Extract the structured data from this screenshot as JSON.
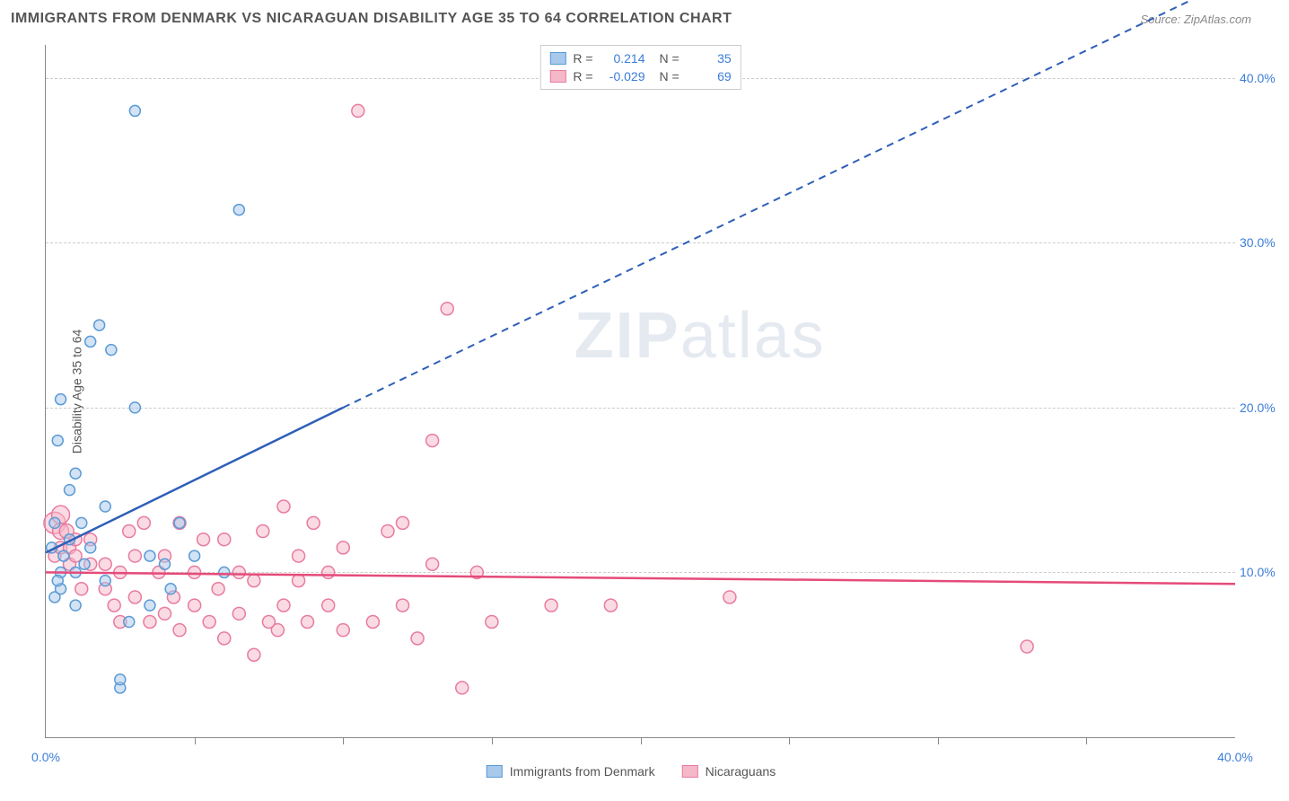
{
  "title": "IMMIGRANTS FROM DENMARK VS NICARAGUAN DISABILITY AGE 35 TO 64 CORRELATION CHART",
  "source": "Source: ZipAtlas.com",
  "ylabel": "Disability Age 35 to 64",
  "watermark_bold": "ZIP",
  "watermark_light": "atlas",
  "chart": {
    "type": "scatter",
    "xlim": [
      0,
      40
    ],
    "ylim": [
      0,
      42
    ],
    "xticks": [
      0,
      40
    ],
    "xtick_labels": [
      "0.0%",
      "40.0%"
    ],
    "xtick_minors": [
      5,
      10,
      15,
      20,
      25,
      30,
      35
    ],
    "yticks": [
      10,
      20,
      30,
      40
    ],
    "ytick_labels": [
      "10.0%",
      "20.0%",
      "30.0%",
      "40.0%"
    ],
    "background_color": "#ffffff",
    "grid_color": "#cccccc",
    "series": [
      {
        "name": "Immigrants from Denmark",
        "fill": "#a8c8ec",
        "stroke": "#5b9bd5",
        "fill_opacity": 0.5,
        "R": "0.214",
        "N": "35",
        "regression": {
          "solid": {
            "x1": 0,
            "y1": 11.2,
            "x2": 10,
            "y2": 20
          },
          "dashed": {
            "x1": 10,
            "y1": 20,
            "x2": 40,
            "y2": 46
          },
          "color": "#2e5fb8",
          "width": 2.5
        },
        "points": [
          {
            "x": 0.2,
            "y": 11.5,
            "r": 6
          },
          {
            "x": 0.3,
            "y": 8.5,
            "r": 6
          },
          {
            "x": 0.4,
            "y": 18,
            "r": 6
          },
          {
            "x": 0.5,
            "y": 20.5,
            "r": 6
          },
          {
            "x": 0.5,
            "y": 9,
            "r": 6
          },
          {
            "x": 0.6,
            "y": 11,
            "r": 6
          },
          {
            "x": 0.8,
            "y": 15,
            "r": 6
          },
          {
            "x": 1,
            "y": 10,
            "r": 6
          },
          {
            "x": 1,
            "y": 16,
            "r": 6
          },
          {
            "x": 1.2,
            "y": 13,
            "r": 6
          },
          {
            "x": 1.5,
            "y": 11.5,
            "r": 6
          },
          {
            "x": 1.5,
            "y": 24,
            "r": 6
          },
          {
            "x": 1.8,
            "y": 25,
            "r": 6
          },
          {
            "x": 2,
            "y": 9.5,
            "r": 6
          },
          {
            "x": 2,
            "y": 14,
            "r": 6
          },
          {
            "x": 2.2,
            "y": 23.5,
            "r": 6
          },
          {
            "x": 2.5,
            "y": 3,
            "r": 6
          },
          {
            "x": 2.5,
            "y": 3.5,
            "r": 6
          },
          {
            "x": 2.8,
            "y": 7,
            "r": 6
          },
          {
            "x": 3,
            "y": 20,
            "r": 6
          },
          {
            "x": 3,
            "y": 38,
            "r": 6
          },
          {
            "x": 3.5,
            "y": 8,
            "r": 6
          },
          {
            "x": 3.5,
            "y": 11,
            "r": 6
          },
          {
            "x": 4,
            "y": 10.5,
            "r": 6
          },
          {
            "x": 4.2,
            "y": 9,
            "r": 6
          },
          {
            "x": 4.5,
            "y": 13,
            "r": 6
          },
          {
            "x": 5,
            "y": 11,
            "r": 6
          },
          {
            "x": 6,
            "y": 10,
            "r": 6
          },
          {
            "x": 6.5,
            "y": 32,
            "r": 6
          },
          {
            "x": 0.3,
            "y": 13,
            "r": 6
          },
          {
            "x": 0.5,
            "y": 10,
            "r": 6
          },
          {
            "x": 1,
            "y": 8,
            "r": 6
          },
          {
            "x": 0.8,
            "y": 12,
            "r": 6
          },
          {
            "x": 1.3,
            "y": 10.5,
            "r": 6
          },
          {
            "x": 0.4,
            "y": 9.5,
            "r": 6
          }
        ]
      },
      {
        "name": "Nicaraguans",
        "fill": "#f5b8c8",
        "stroke": "#e87ba0",
        "fill_opacity": 0.5,
        "R": "-0.029",
        "N": "69",
        "regression": {
          "solid": {
            "x1": 0,
            "y1": 10,
            "x2": 40,
            "y2": 9.3
          },
          "color": "#e54b7a",
          "width": 2.5
        },
        "points": [
          {
            "x": 0.3,
            "y": 11,
            "r": 7
          },
          {
            "x": 0.3,
            "y": 13,
            "r": 12
          },
          {
            "x": 0.5,
            "y": 11.5,
            "r": 7
          },
          {
            "x": 0.5,
            "y": 12.5,
            "r": 9
          },
          {
            "x": 0.8,
            "y": 10.5,
            "r": 7
          },
          {
            "x": 0.8,
            "y": 11.5,
            "r": 7
          },
          {
            "x": 1,
            "y": 11,
            "r": 7
          },
          {
            "x": 1,
            "y": 12,
            "r": 7
          },
          {
            "x": 1.2,
            "y": 9,
            "r": 7
          },
          {
            "x": 1.5,
            "y": 10.5,
            "r": 7
          },
          {
            "x": 1.5,
            "y": 12,
            "r": 7
          },
          {
            "x": 2,
            "y": 9,
            "r": 7
          },
          {
            "x": 2,
            "y": 10.5,
            "r": 7
          },
          {
            "x": 2.3,
            "y": 8,
            "r": 7
          },
          {
            "x": 2.5,
            "y": 7,
            "r": 7
          },
          {
            "x": 2.5,
            "y": 10,
            "r": 7
          },
          {
            "x": 2.8,
            "y": 12.5,
            "r": 7
          },
          {
            "x": 3,
            "y": 8.5,
            "r": 7
          },
          {
            "x": 3,
            "y": 11,
            "r": 7
          },
          {
            "x": 3.3,
            "y": 13,
            "r": 7
          },
          {
            "x": 3.5,
            "y": 7,
            "r": 7
          },
          {
            "x": 3.8,
            "y": 10,
            "r": 7
          },
          {
            "x": 4,
            "y": 7.5,
            "r": 7
          },
          {
            "x": 4,
            "y": 11,
            "r": 7
          },
          {
            "x": 4.3,
            "y": 8.5,
            "r": 7
          },
          {
            "x": 4.5,
            "y": 6.5,
            "r": 7
          },
          {
            "x": 4.5,
            "y": 13,
            "r": 7
          },
          {
            "x": 5,
            "y": 8,
            "r": 7
          },
          {
            "x": 5,
            "y": 10,
            "r": 7
          },
          {
            "x": 5.3,
            "y": 12,
            "r": 7
          },
          {
            "x": 5.5,
            "y": 7,
            "r": 7
          },
          {
            "x": 5.8,
            "y": 9,
            "r": 7
          },
          {
            "x": 6,
            "y": 6,
            "r": 7
          },
          {
            "x": 6,
            "y": 12,
            "r": 7
          },
          {
            "x": 6.5,
            "y": 7.5,
            "r": 7
          },
          {
            "x": 6.5,
            "y": 10,
            "r": 7
          },
          {
            "x": 7,
            "y": 5,
            "r": 7
          },
          {
            "x": 7,
            "y": 9.5,
            "r": 7
          },
          {
            "x": 7.3,
            "y": 12.5,
            "r": 7
          },
          {
            "x": 7.5,
            "y": 7,
            "r": 7
          },
          {
            "x": 7.8,
            "y": 6.5,
            "r": 7
          },
          {
            "x": 8,
            "y": 8,
            "r": 7
          },
          {
            "x": 8,
            "y": 14,
            "r": 7
          },
          {
            "x": 8.5,
            "y": 9.5,
            "r": 7
          },
          {
            "x": 8.5,
            "y": 11,
            "r": 7
          },
          {
            "x": 8.8,
            "y": 7,
            "r": 7
          },
          {
            "x": 9,
            "y": 13,
            "r": 7
          },
          {
            "x": 9.5,
            "y": 8,
            "r": 7
          },
          {
            "x": 9.5,
            "y": 10,
            "r": 7
          },
          {
            "x": 10,
            "y": 6.5,
            "r": 7
          },
          {
            "x": 10,
            "y": 11.5,
            "r": 7
          },
          {
            "x": 10.5,
            "y": 38,
            "r": 7
          },
          {
            "x": 11,
            "y": 7,
            "r": 7
          },
          {
            "x": 11.5,
            "y": 12.5,
            "r": 7
          },
          {
            "x": 12,
            "y": 8,
            "r": 7
          },
          {
            "x": 12,
            "y": 13,
            "r": 7
          },
          {
            "x": 12.5,
            "y": 6,
            "r": 7
          },
          {
            "x": 13,
            "y": 10.5,
            "r": 7
          },
          {
            "x": 13,
            "y": 18,
            "r": 7
          },
          {
            "x": 13.5,
            "y": 26,
            "r": 7
          },
          {
            "x": 14,
            "y": 3,
            "r": 7
          },
          {
            "x": 14.5,
            "y": 10,
            "r": 7
          },
          {
            "x": 15,
            "y": 7,
            "r": 7
          },
          {
            "x": 17,
            "y": 8,
            "r": 7
          },
          {
            "x": 19,
            "y": 8,
            "r": 7
          },
          {
            "x": 23,
            "y": 8.5,
            "r": 7
          },
          {
            "x": 33,
            "y": 5.5,
            "r": 7
          },
          {
            "x": 0.5,
            "y": 13.5,
            "r": 10
          },
          {
            "x": 0.7,
            "y": 12.5,
            "r": 8
          }
        ]
      }
    ]
  },
  "legend_bottom": [
    {
      "label": "Immigrants from Denmark",
      "fill": "#a8c8ec",
      "stroke": "#5b9bd5"
    },
    {
      "label": "Nicaraguans",
      "fill": "#f5b8c8",
      "stroke": "#e87ba0"
    }
  ]
}
